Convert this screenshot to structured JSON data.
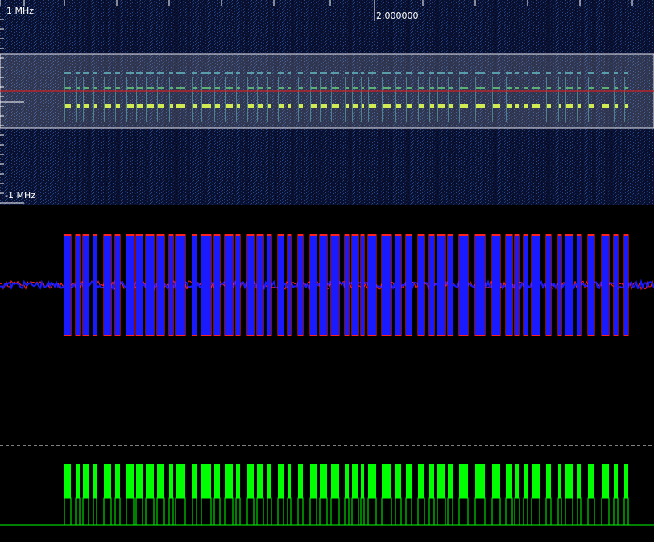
{
  "spectrogram": {
    "freq_top_label": "1 MHz",
    "freq_bottom_label": "-1 MHz",
    "time_label": "2,000000"
  },
  "colors": {
    "background": "#000000",
    "spectrogram_bg": "#0c1235",
    "selection_border": "#e8e8f0",
    "center_line": "#d02020",
    "i_trace": "#1a1aff",
    "q_trace": "#ff2020",
    "ask_trace": "#00ff00",
    "threshold_line": "#ffffff"
  }
}
